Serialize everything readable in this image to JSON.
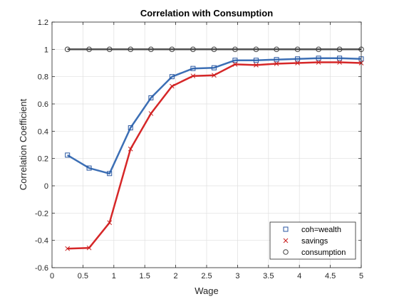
{
  "chart_data": {
    "type": "line",
    "title": "Correlation with Consumption",
    "xlabel": "Wage",
    "ylabel": "Correlation Coefficient",
    "xlim": [
      0,
      5
    ],
    "ylim": [
      -0.6,
      1.2
    ],
    "xticks": [
      0,
      0.5,
      1,
      1.5,
      2,
      2.5,
      3,
      3.5,
      4,
      4.5,
      5
    ],
    "xtick_labels": [
      "0",
      "0.5",
      "1",
      "1.5",
      "2",
      "2.5",
      "3",
      "3.5",
      "4",
      "4.5",
      "5"
    ],
    "yticks": [
      -0.6,
      -0.4,
      -0.2,
      0,
      0.2,
      0.4,
      0.6,
      0.8,
      1,
      1.2
    ],
    "ytick_labels": [
      "-0.6",
      "-0.4",
      "-0.2",
      "0",
      "0.2",
      "0.4",
      "0.6",
      "0.8",
      "1",
      "1.2"
    ],
    "grid": true,
    "legend_position": "bottom-right",
    "x": [
      0.25,
      0.6,
      0.93,
      1.27,
      1.6,
      1.94,
      2.28,
      2.62,
      2.96,
      3.3,
      3.63,
      3.97,
      4.31,
      4.65,
      5.0
    ],
    "series": [
      {
        "name": "coh=wealth",
        "color": "#3c6fb5",
        "marker": "square",
        "values": [
          0.225,
          0.13,
          0.09,
          0.425,
          0.645,
          0.8,
          0.86,
          0.865,
          0.92,
          0.92,
          0.925,
          0.93,
          0.935,
          0.935,
          0.93
        ]
      },
      {
        "name": "savings",
        "color": "#d62728",
        "marker": "x",
        "values": [
          -0.46,
          -0.455,
          -0.27,
          0.27,
          0.53,
          0.73,
          0.805,
          0.81,
          0.89,
          0.885,
          0.895,
          0.9,
          0.905,
          0.905,
          0.9
        ]
      },
      {
        "name": "consumption",
        "color": "#525252",
        "marker": "circle",
        "values": [
          1,
          1,
          1,
          1,
          1,
          1,
          1,
          1,
          1,
          1,
          1,
          1,
          1,
          1,
          1
        ]
      }
    ]
  }
}
